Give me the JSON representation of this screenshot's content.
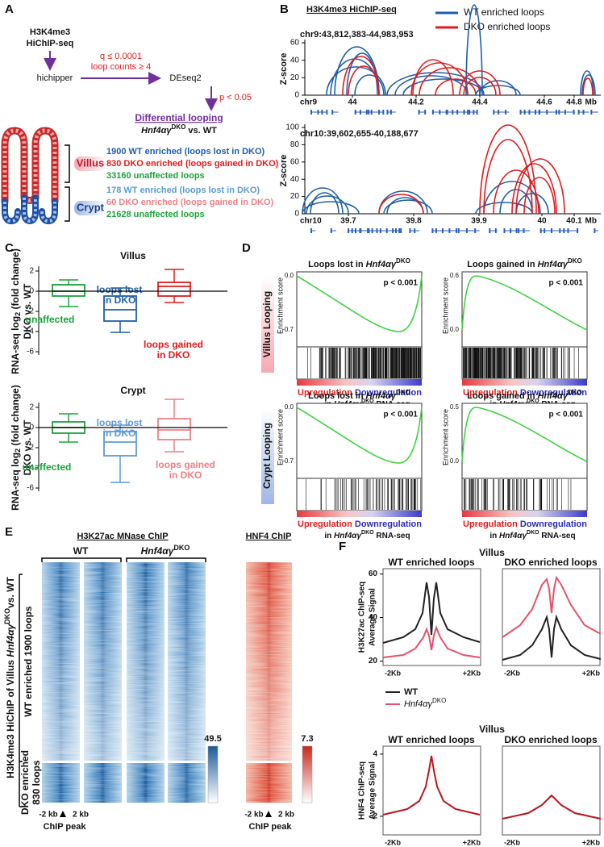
{
  "panels": {
    "A": {
      "label": "A",
      "input": [
        "H3K4me3",
        "HiChIP-seq"
      ],
      "thresholds": [
        "q ≤ 0.0001",
        "loop counts ≥ 4"
      ],
      "step1": "hichipper",
      "step2": "DEseq2",
      "pvalue": "p < 0.05",
      "result": "Differential looping",
      "comparison": {
        "gene": "Hnf4αγ",
        "sup": "DKO",
        "rest": " vs. WT"
      },
      "villus": {
        "label": "Villus",
        "lines": [
          "1900 WT enriched (loops lost in DKO)",
          "830 DKO enriched (loops gained in DKO)",
          "33160 unaffected loops"
        ]
      },
      "crypt": {
        "label": "Crypt",
        "lines": [
          "178 WT enriched (loops lost in DKO)",
          "60 DKO enriched (loops gained in DKO)",
          "21628 unaffected loops"
        ]
      }
    },
    "B": {
      "label": "B",
      "title": "H3K4me3 HiChIP-seq",
      "legend": [
        "WT enriched loops",
        "DKO enriched loops"
      ],
      "y_label": "Z-score",
      "unit": "Mb",
      "tracks": [
        {
          "region": "chr9:43,812,383-44,983,953",
          "chrom": "chr9",
          "xticks": [
            "44",
            "44.2",
            "44.4",
            "44.6",
            "44.8"
          ],
          "yticks": [
            0,
            20,
            40,
            60
          ]
        },
        {
          "region": "chr10:39,602,655-40,188,677",
          "chrom": "chr10",
          "xticks": [
            "39.7",
            "39.8",
            "39.9",
            "40",
            "40.1"
          ],
          "yticks": [
            0,
            20,
            40,
            60,
            80,
            100
          ]
        }
      ]
    },
    "C": {
      "label": "C",
      "y_label": {
        "pre": "RNA-seq log",
        "sub": "2",
        "rest": " (fold change)"
      },
      "y_label_2": "DKO vs. WT",
      "sections": [
        {
          "title": "Villus",
          "yticks": [
            2,
            0,
            -2,
            -4,
            -6
          ],
          "groups": [
            [
              "unaffected"
            ],
            [
              "loops lost",
              "in DKO"
            ],
            [
              "loops gained",
              "in DKO"
            ]
          ]
        },
        {
          "title": "Crypt",
          "yticks": [
            2,
            0,
            -2,
            -4,
            -6
          ],
          "groups": [
            [
              "unaffected"
            ],
            [
              "loops lost",
              "in DKO"
            ],
            [
              "loops gained",
              "in DKO"
            ]
          ]
        }
      ]
    },
    "D": {
      "label": "D",
      "rows": [
        "Villus Looping",
        "Crypt Looping"
      ],
      "y_label": "Enrichment score",
      "up": "Upregulation",
      "down": "Downregulation",
      "footer": {
        "pre": "in ",
        "gene": "Hnf4αγ",
        "sup": "DKO",
        "rest": " RNA-seq"
      },
      "plots": [
        {
          "title": {
            "pre": "Loops lost in ",
            "gene": "Hnf4αγ",
            "sup": "DKO"
          },
          "yticks": [
            "0.0",
            "-0.7"
          ],
          "pvalue": "p < 0.001"
        },
        {
          "title": {
            "pre": "Loops gained in ",
            "gene": "Hnf4αγ",
            "sup": "DKO"
          },
          "yticks": [
            "0.6",
            "0.0"
          ],
          "pvalue": "p < 0.001"
        },
        {
          "title": {
            "pre": "Loops lost in ",
            "gene": "Hnf4αγ",
            "sup": "DKO"
          },
          "yticks": [
            "0.0",
            "-0.7"
          ],
          "pvalue": "p < 0.001"
        },
        {
          "title": {
            "pre": "Loops gained in ",
            "gene": "Hnf4αγ",
            "sup": "DKO"
          },
          "yticks": [
            "0.5",
            "0.0"
          ],
          "pvalue": "p < 0.001"
        }
      ]
    },
    "E": {
      "label": "E",
      "title": "H3K27ac MNase ChIP",
      "groups": [
        "WT",
        {
          "gene": "Hnf4αγ",
          "sup": "DKO"
        }
      ],
      "hnf4_title": "HNF4 ChIP",
      "side_label": {
        "pre": "H3K4me3 HiChIP of Villus ",
        "gene": "Hnf4αγ",
        "sup": "DKO",
        "rest": "vs. WT"
      },
      "row_labels": [
        [
          "WT enriched 1900 loops"
        ],
        [
          "DKO enriched",
          "830 loops"
        ]
      ],
      "scale_max": [
        "49.5",
        "7.3"
      ],
      "x_left": "-2 kb",
      "x_right": "2 kb",
      "x_label": "ChIP peak"
    },
    "F": {
      "label": "F",
      "x_left": "-2Kb",
      "x_right": "+2Kb",
      "legend": [
        "WT",
        {
          "gene": "Hnf4αγ",
          "sup": "DKO"
        }
      ],
      "sections": [
        {
          "title": "Villus",
          "plots": [
            "WT enriched loops",
            "DKO enriched loops"
          ],
          "y_label": [
            "H3K27ac ChIP-seq",
            "Average Signal"
          ],
          "yticks": [
            60,
            40,
            20
          ]
        },
        {
          "title": "Villus",
          "plots": [
            "WT enriched loops",
            "DKO enriched loops"
          ],
          "y_label": [
            "HNF4 ChIP-seq",
            "Average Signal"
          ],
          "yticks": [
            4,
            2
          ]
        }
      ]
    }
  }
}
